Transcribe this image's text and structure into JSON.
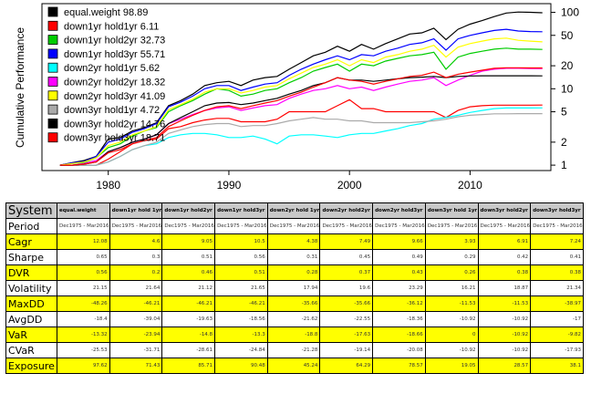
{
  "chart_data": {
    "type": "line",
    "ylabel": "Cumulative Performance",
    "log_scale_y": true,
    "ylim": [
      0.85,
      130
    ],
    "xlim": [
      1974.5,
      2016.7
    ],
    "x_ticks": [
      1980,
      1990,
      2000,
      2010
    ],
    "y_ticks": [
      1,
      2,
      5,
      10,
      20,
      50,
      100
    ],
    "legend_position": "top-left",
    "grid": false,
    "x": [
      1976,
      1977,
      1978,
      1979,
      1980,
      1981,
      1982,
      1983,
      1984,
      1985,
      1986,
      1987,
      1988,
      1989,
      1990,
      1991,
      1992,
      1993,
      1994,
      1995,
      1996,
      1997,
      1998,
      1999,
      2000,
      2001,
      2002,
      2003,
      2004,
      2005,
      2006,
      2007,
      2008,
      2009,
      2010,
      2011,
      2012,
      2013,
      2014,
      2015,
      2016
    ],
    "series": [
      {
        "name": "equal.weight",
        "label": "98.89",
        "color": "#000000",
        "values": [
          1,
          1.08,
          1.15,
          1.3,
          2.2,
          2.3,
          2.8,
          3.1,
          3.6,
          6,
          7,
          8.5,
          11,
          12,
          12.5,
          11,
          13,
          14,
          14.5,
          18,
          22,
          27,
          30,
          36,
          31,
          38,
          33,
          39,
          45,
          52,
          54,
          62,
          44,
          60,
          70,
          78,
          88,
          98,
          101,
          100,
          98.89
        ]
      },
      {
        "name": "down1yr hold1yr",
        "label": "6.11",
        "color": "#ff0000",
        "values": [
          1,
          1,
          1,
          1,
          1.2,
          1.5,
          1.9,
          2.1,
          2.2,
          3,
          3.2,
          3.6,
          3.9,
          4.1,
          4.1,
          3.7,
          3.7,
          3.7,
          4,
          5,
          5,
          5,
          5,
          6,
          7.2,
          5.5,
          5.5,
          5,
          5,
          5,
          5,
          5,
          4.2,
          5.2,
          5.8,
          6,
          6.1,
          6.1,
          6.1,
          6.1,
          6.11
        ]
      },
      {
        "name": "down1yr hold2yr",
        "label": "32.73",
        "color": "#00cc00",
        "values": [
          1,
          1.05,
          1.08,
          1.25,
          1.7,
          1.9,
          2.4,
          2.8,
          3.1,
          5,
          6,
          7,
          8.5,
          10,
          9.5,
          8,
          8.5,
          9.5,
          10,
          12,
          14,
          17,
          19,
          21,
          17,
          21,
          20,
          23,
          25,
          27,
          28,
          30,
          18,
          26,
          29,
          31,
          33,
          34,
          33,
          33,
          32.73
        ]
      },
      {
        "name": "down1yr hold3yr",
        "label": "55.71",
        "color": "#0000ff",
        "values": [
          1,
          1.07,
          1.12,
          1.3,
          2,
          2.2,
          2.7,
          3,
          3.5,
          5.8,
          6.7,
          8,
          10,
          11,
          11,
          9.5,
          10.5,
          11.5,
          12,
          15,
          18,
          21,
          24,
          27,
          24,
          28,
          27,
          31,
          34,
          38,
          40,
          45,
          32,
          45,
          50,
          54,
          58,
          60,
          57,
          56,
          55.71
        ]
      },
      {
        "name": "down2yr hold1yr",
        "label": "5.62",
        "color": "#00ffff",
        "values": [
          1,
          1,
          1,
          1,
          1.1,
          1.3,
          1.6,
          1.8,
          1.9,
          2.3,
          2.5,
          2.6,
          2.6,
          2.5,
          2.3,
          2.3,
          2.4,
          2.2,
          1.9,
          2.4,
          2.5,
          2.5,
          2.4,
          2.3,
          2.5,
          2.6,
          2.6,
          2.8,
          3,
          3.3,
          3.5,
          4,
          4.2,
          4.5,
          4.9,
          5.2,
          5.5,
          5.6,
          5.6,
          5.6,
          5.62
        ]
      },
      {
        "name": "down2yr hold2yr",
        "label": "18.32",
        "color": "#ff00ff",
        "values": [
          1,
          1,
          1.05,
          1.15,
          1.5,
          1.7,
          2,
          2.2,
          2.5,
          3.5,
          4,
          4.6,
          5.2,
          5.6,
          5.8,
          5.2,
          5.6,
          6,
          6.2,
          7.5,
          8.5,
          9.5,
          10,
          11,
          10,
          10.5,
          9.5,
          10.5,
          11.5,
          12.5,
          13,
          14,
          11,
          13,
          15,
          17,
          18,
          18.5,
          18.5,
          18.4,
          18.32
        ]
      },
      {
        "name": "down2yr hold3yr",
        "label": "41.09",
        "color": "#ffff00",
        "values": [
          1,
          1.05,
          1.1,
          1.25,
          1.8,
          2,
          2.5,
          2.8,
          3.2,
          5.3,
          6.2,
          7.3,
          9,
          10,
          10,
          8.8,
          9.5,
          10.5,
          11,
          13.5,
          16,
          19,
          21,
          24,
          20,
          24,
          22,
          26,
          28,
          31,
          33,
          37,
          26,
          35,
          39,
          42,
          45,
          46,
          43,
          42,
          41.09
        ]
      },
      {
        "name": "down3yr hold1yr",
        "label": "4.72",
        "color": "#aaaaaa",
        "values": [
          1,
          1,
          1,
          1,
          1.1,
          1.3,
          1.6,
          1.8,
          2,
          2.6,
          2.9,
          3.2,
          3.4,
          3.5,
          3.5,
          3.2,
          3.3,
          3.3,
          3.5,
          3.8,
          4,
          4.2,
          4,
          4,
          3.8,
          3.8,
          3.6,
          3.6,
          3.6,
          3.6,
          3.7,
          3.8,
          4,
          4.3,
          4.5,
          4.6,
          4.7,
          4.7,
          4.72,
          4.72,
          4.72
        ]
      },
      {
        "name": "down3yr hold2yr",
        "label": "14.76",
        "color": "#000000",
        "values": [
          1,
          1,
          1.03,
          1.1,
          1.5,
          1.7,
          2,
          2.2,
          2.5,
          3.5,
          4.2,
          5,
          6,
          6.5,
          6.6,
          6.2,
          6.5,
          7,
          7.5,
          8.5,
          9.5,
          11,
          12,
          14,
          13,
          13,
          12.5,
          13,
          13.5,
          14,
          14.2,
          14.5,
          14,
          14.5,
          14.7,
          14.8,
          14.8,
          14.8,
          14.8,
          14.8,
          14.76
        ]
      },
      {
        "name": "down3yr hold3yr",
        "label": "18.71",
        "color": "#ff0000",
        "values": [
          1,
          1,
          1.03,
          1.1,
          1.45,
          1.6,
          1.9,
          2.1,
          2.3,
          3.2,
          3.8,
          4.5,
          5.2,
          5.8,
          6,
          5.5,
          6,
          6.5,
          7,
          8,
          9,
          10.5,
          12,
          14,
          13,
          12.5,
          11.5,
          12.5,
          13.5,
          14.5,
          15,
          16.5,
          14,
          15.5,
          16.5,
          17.5,
          18.5,
          18.8,
          18.8,
          18.7,
          18.71
        ]
      }
    ]
  },
  "table": {
    "title": "System",
    "columns": [
      "equal.weight",
      "down1yr hold 1yr",
      "down1yr hold2yr",
      "down1yr hold3yr",
      "down2yr hold 1yr",
      "down2yr hold2yr",
      "down2yr hold3yr",
      "down3yr hold 1yr",
      "down3yr hold2yr",
      "down3yr hold3yr"
    ],
    "rows": [
      {
        "label": "Period",
        "highlight": false,
        "center": true,
        "values": [
          "Dec1975 - Mar2016",
          "Dec1975 - Mar2016",
          "Dec1975 - Mar2016",
          "Dec1975 - Mar2016",
          "Dec1975 - Mar2016",
          "Dec1975 - Mar2016",
          "Dec1975 - Mar2016",
          "Dec1975 - Mar2016",
          "Dec1975 - Mar2016",
          "Dec1975 - Mar2016"
        ]
      },
      {
        "label": "Cagr",
        "highlight": true,
        "values": [
          "12.08",
          "4.6",
          "9.05",
          "10.5",
          "4.38",
          "7.49",
          "9.66",
          "3.93",
          "6.91",
          "7.24"
        ]
      },
      {
        "label": "Sharpe",
        "highlight": false,
        "values": [
          "0.65",
          "0.3",
          "0.51",
          "0.56",
          "0.31",
          "0.45",
          "0.49",
          "0.29",
          "0.42",
          "0.41"
        ]
      },
      {
        "label": "DVR",
        "highlight": true,
        "values": [
          "0.56",
          "0.2",
          "0.46",
          "0.51",
          "0.28",
          "0.37",
          "0.43",
          "0.26",
          "0.38",
          "0.38"
        ]
      },
      {
        "label": "Volatility",
        "highlight": false,
        "values": [
          "21.15",
          "21.64",
          "21.12",
          "21.65",
          "17.94",
          "19.6",
          "23.29",
          "16.21",
          "18.87",
          "21.34"
        ]
      },
      {
        "label": "MaxDD",
        "highlight": true,
        "values": [
          "-48.26",
          "-46.21",
          "-46.21",
          "-46.21",
          "-35.66",
          "-35.66",
          "-36.12",
          "-11.53",
          "-11.53",
          "-38.97"
        ]
      },
      {
        "label": "AvgDD",
        "highlight": false,
        "values": [
          "-18.4",
          "-39.04",
          "-19.63",
          "-18.56",
          "-21.62",
          "-22.55",
          "-18.36",
          "-10.92",
          "-10.92",
          "-17"
        ]
      },
      {
        "label": "VaR",
        "highlight": true,
        "values": [
          "-13.32",
          "-23.94",
          "-14.8",
          "-13.3",
          "-18.8",
          "-17.63",
          "-18.66",
          "0",
          "-10.92",
          "-9.82"
        ]
      },
      {
        "label": "CVaR",
        "highlight": false,
        "values": [
          "-25.53",
          "-31.71",
          "-28.61",
          "-24.84",
          "-21.28",
          "-19.14",
          "-20.08",
          "-10.92",
          "-10.92",
          "-17.93"
        ]
      },
      {
        "label": "Exposure",
        "highlight": true,
        "values": [
          "97.62",
          "71.43",
          "85.71",
          "90.48",
          "45.24",
          "64.29",
          "78.57",
          "19.05",
          "28.57",
          "38.1"
        ]
      }
    ]
  }
}
